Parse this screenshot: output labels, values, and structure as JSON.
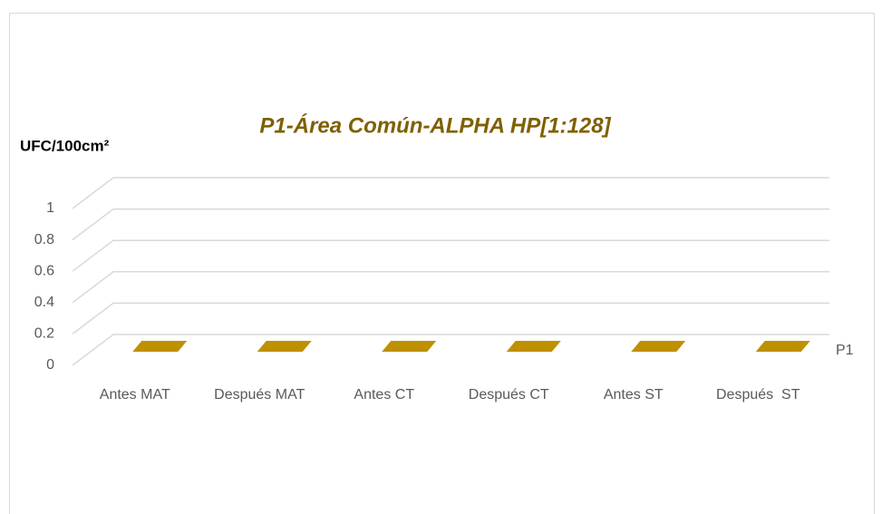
{
  "chart_data": {
    "type": "bar3d",
    "title": "P1-Área Común-ALPHA HP[1:128]",
    "y_axis_label": "UFC/100cm²",
    "categories": [
      "Antes MAT",
      "Después MAT",
      "Antes CT",
      "Después CT",
      "Antes ST",
      "Después  ST"
    ],
    "series": [
      {
        "name": "P1",
        "color": "#bf9000",
        "values": [
          0,
          0,
          0,
          0,
          0,
          0
        ]
      }
    ],
    "ylim": [
      0,
      1
    ],
    "yticks": [
      0,
      0.2,
      0.4,
      0.6,
      0.8,
      1
    ],
    "grid": true
  }
}
